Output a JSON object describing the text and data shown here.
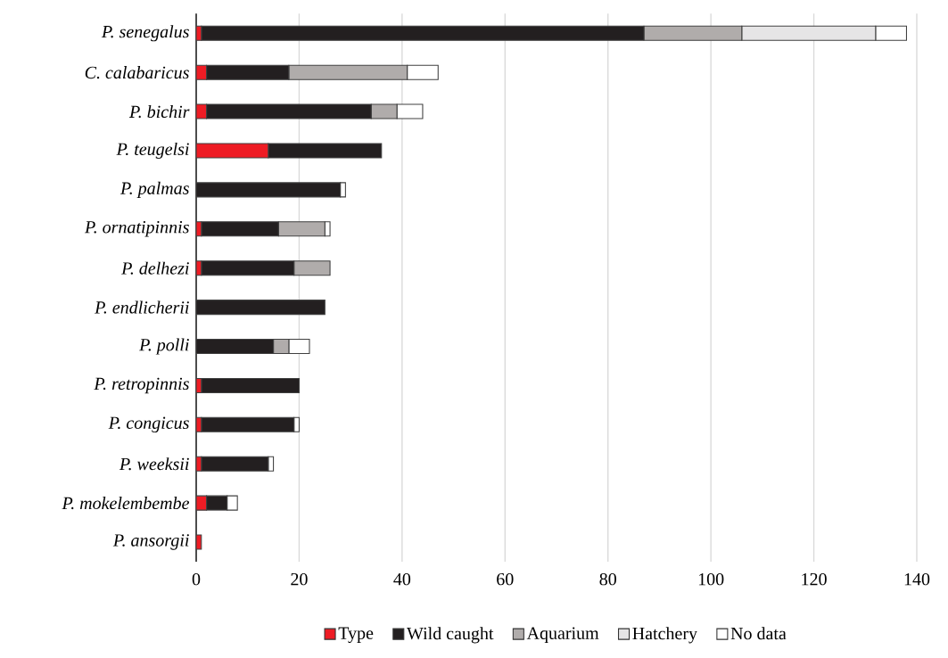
{
  "chart_data": {
    "type": "bar",
    "orientation": "horizontal",
    "stacked": true,
    "categories": [
      "P. senegalus",
      "C. calabaricus",
      "P. bichir",
      "P. teugelsi",
      "P. palmas",
      "P. ornatipinnis",
      "P. delhezi",
      "P. endlicherii",
      "P. polli",
      "P. retropinnis",
      "P. congicus",
      "P. weeksii",
      "P. mokelembembe",
      "P. ansorgii"
    ],
    "series": [
      {
        "name": "Type",
        "color": "#ee1c24",
        "values": [
          1,
          2,
          2,
          14,
          0,
          1,
          1,
          0,
          0,
          1,
          1,
          1,
          2,
          1
        ]
      },
      {
        "name": "Wild caught",
        "color": "#231f20",
        "values": [
          86,
          16,
          32,
          22,
          28,
          15,
          18,
          25,
          15,
          19,
          18,
          13,
          4,
          0
        ]
      },
      {
        "name": "Aquarium",
        "color": "#b0acab",
        "values": [
          19,
          23,
          5,
          0,
          0,
          9,
          7,
          0,
          3,
          0,
          0,
          0,
          0,
          0
        ]
      },
      {
        "name": "Hatchery",
        "color": "#e6e5e6",
        "values": [
          26,
          0,
          0,
          0,
          0,
          0,
          0,
          0,
          0,
          0,
          0,
          0,
          0,
          0
        ]
      },
      {
        "name": "No data",
        "color": "#ffffff",
        "values": [
          6,
          6,
          5,
          0,
          1,
          1,
          0,
          0,
          4,
          0,
          1,
          1,
          2,
          0
        ]
      }
    ],
    "xlim": [
      0,
      140
    ],
    "xticks": [
      0,
      20,
      40,
      60,
      80,
      100,
      120,
      140
    ],
    "grid": "x",
    "legend": "bottom"
  }
}
